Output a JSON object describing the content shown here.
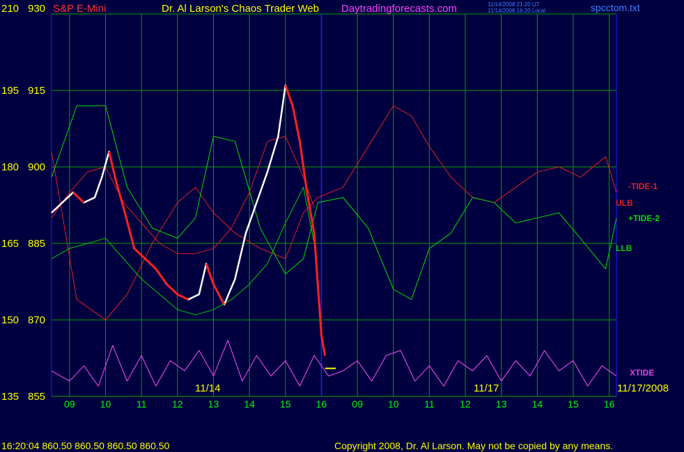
{
  "header": {
    "symbol": "S&P E-Mini",
    "title": "Dr. Al Larson's Chaos Trader Web",
    "site": "Daytradingforecasts.com",
    "time_ut": "11/14/2008 21:20 UT",
    "time_local": "11/14/2008 16:20 Local",
    "file": "spcctom.txt"
  },
  "footer": {
    "quote": "16:20:04  860.50 860.50 860.50 860.50",
    "copyright": "Copyright 2008, Dr. Al Larson. May not be copied by any means."
  },
  "colors": {
    "background": "#000040",
    "grid": "#00a000",
    "axis_text": "#ffff00",
    "hour_text": "#00ff00",
    "price_up": "#ffffff",
    "price_down": "#ff2020",
    "tide_minus_1": "#e02020",
    "tide_plus_2": "#00e000",
    "ulb": "#e02020",
    "llb": "#00d000",
    "xtide": "#e040e0",
    "blue_band": "#2020ff",
    "header_red": "#ff3030",
    "header_magenta": "#ff40ff",
    "header_blue": "#4080ff"
  },
  "chart_data": {
    "type": "line",
    "title": "S&P E-Mini",
    "y_left_ticks": [
      "210",
      "195",
      "180",
      "165",
      "150",
      "135"
    ],
    "y_right_ticks": [
      "930",
      "915",
      "900",
      "885",
      "870",
      "855"
    ],
    "ylim": [
      855,
      930
    ],
    "x_ticks": [
      "09",
      "10",
      "11",
      "12",
      "13",
      "14",
      "15",
      "16",
      "09",
      "10",
      "11",
      "12",
      "13",
      "14",
      "15",
      "16"
    ],
    "date_labels": [
      "11/14",
      "11/17",
      "11/17/2008"
    ],
    "series": [
      {
        "name": "-TIDE-1",
        "label": "-TIDE-1",
        "x": [
          8.5,
          9.2,
          10,
          10.6,
          11.3,
          12,
          12.5,
          13,
          13.6,
          14.3,
          15,
          15.5,
          15.9,
          16.6,
          17.3,
          18,
          18.5,
          19,
          19.6,
          20.2,
          20.8,
          21.4,
          22,
          22.6,
          23.2,
          23.9,
          24.2
        ],
        "values": [
          903,
          874,
          870,
          875,
          885,
          893,
          896,
          891,
          887,
          884,
          882,
          891,
          894,
          896,
          904,
          912,
          910,
          904,
          898,
          894,
          893,
          896,
          899,
          900,
          898,
          902,
          895
        ]
      },
      {
        "name": "+TIDE-2",
        "label": "+TIDE-2",
        "x": [
          8.5,
          9.2,
          10,
          10.6,
          11.3,
          12,
          12.5,
          13,
          13.6,
          14.3,
          15,
          15.5,
          15.9,
          16.6,
          17.3,
          18,
          18.5,
          19,
          19.6,
          20.2,
          20.8,
          21.4,
          22,
          22.6,
          23.2,
          23.9,
          24.2
        ],
        "values": [
          898,
          912,
          912,
          896,
          888,
          886,
          890,
          906,
          905,
          888,
          879,
          882,
          893,
          894,
          888,
          876,
          874,
          884,
          887,
          894,
          893,
          889,
          890,
          891,
          886,
          880,
          890
        ]
      },
      {
        "name": "ULB",
        "label": "ULB",
        "x": [
          8.5,
          9,
          9.5,
          10,
          10.5,
          11,
          11.5,
          12,
          12.5,
          13,
          13.5,
          14,
          14.5,
          15,
          15.5,
          15.8
        ],
        "values": [
          890,
          895,
          899,
          900,
          893,
          889,
          885,
          883,
          883,
          884,
          888,
          895,
          905,
          906,
          898,
          892
        ]
      },
      {
        "name": "LLB",
        "label": "LLB",
        "x": [
          8.5,
          9,
          9.5,
          10,
          10.5,
          11,
          11.5,
          12,
          12.5,
          13,
          13.5,
          14,
          14.5,
          15,
          15.5,
          15.8
        ],
        "values": [
          882,
          884,
          885,
          886,
          882,
          878,
          875,
          872,
          871,
          872,
          874,
          877,
          881,
          889,
          896,
          885
        ]
      },
      {
        "name": "XTIDE",
        "label": "XTIDE",
        "x": [
          8.5,
          9,
          9.4,
          9.8,
          10.2,
          10.6,
          11,
          11.4,
          11.8,
          12.2,
          12.6,
          13,
          13.4,
          13.8,
          14.2,
          14.6,
          15,
          15.4,
          15.8,
          16.2,
          16.6,
          17,
          17.4,
          17.8,
          18.2,
          18.6,
          19,
          19.4,
          19.8,
          20.2,
          20.6,
          21,
          21.4,
          21.8,
          22.2,
          22.6,
          23,
          23.4,
          23.8,
          24.2
        ],
        "values": [
          860,
          858,
          861,
          857,
          865,
          858,
          863,
          857,
          862,
          860,
          864,
          859,
          866,
          858,
          863,
          859,
          862,
          857,
          863,
          859,
          860,
          862,
          858,
          863,
          864,
          858,
          861,
          857,
          862,
          860,
          863,
          858,
          862,
          859,
          864,
          860,
          862,
          857,
          861,
          859
        ]
      },
      {
        "name": "S&P E-Mini",
        "label": "price",
        "x": [
          8.5,
          8.8,
          9.1,
          9.4,
          9.7,
          9.9,
          10.1,
          10.3,
          10.5,
          10.8,
          11.1,
          11.4,
          11.7,
          12,
          12.3,
          12.6,
          12.8,
          13,
          13.3,
          13.6,
          13.9,
          14.2,
          14.5,
          14.8,
          15,
          15.2,
          15.4,
          15.6,
          15.8,
          15.9,
          16,
          16.1
        ],
        "values": [
          891,
          893,
          895,
          893,
          894,
          898,
          903,
          897,
          892,
          884,
          882,
          880,
          877,
          875,
          874,
          875,
          881,
          877,
          873,
          878,
          887,
          893,
          899,
          906,
          916,
          912,
          905,
          895,
          887,
          877,
          867,
          863
        ]
      },
      {
        "name": "current",
        "label": "current",
        "x": [
          16.1,
          16.4
        ],
        "values": [
          860.5,
          860.5
        ]
      }
    ]
  }
}
